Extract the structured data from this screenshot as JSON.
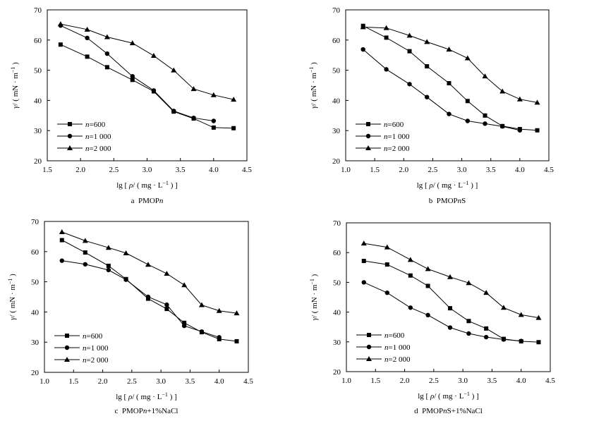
{
  "chart_data": [
    {
      "type": "line",
      "caption": "a PMOPn",
      "caption_parts": [
        "a  PMOP",
        "n",
        ""
      ],
      "xlabel_parts": [
        "lg [ ",
        "ρ",
        "/ ( mg · L",
        "−1",
        " ) ]"
      ],
      "ylabel_parts": [
        "γ",
        "/ ( mN · m",
        "−1",
        " )"
      ],
      "xlim": [
        1.5,
        4.5
      ],
      "ylim": [
        20,
        70
      ],
      "xticks": [
        "1.5",
        "2.0",
        "2.5",
        "3.0",
        "3.5",
        "4.0",
        "4.5"
      ],
      "yticks": [
        "20",
        "30",
        "40",
        "50",
        "60",
        "70"
      ],
      "legend_position": "lower-left",
      "series": [
        {
          "name": "n=600",
          "name_parts": [
            "n",
            "=600"
          ],
          "marker": "square",
          "x": [
            1.7,
            2.1,
            2.4,
            2.78,
            3.1,
            3.4,
            3.7,
            4.0,
            4.3
          ],
          "y": [
            58.5,
            54.5,
            51.0,
            46.8,
            43.0,
            36.3,
            34.0,
            31.0,
            30.8
          ]
        },
        {
          "name": "n=1000",
          "name_parts": [
            "n",
            "=1 000"
          ],
          "marker": "circle",
          "x": [
            1.7,
            2.1,
            2.4,
            2.78,
            3.1,
            3.4,
            3.7,
            4.0
          ],
          "y": [
            64.8,
            60.7,
            55.5,
            48.0,
            43.3,
            36.5,
            34.2,
            33.2
          ]
        },
        {
          "name": "n=2000",
          "name_parts": [
            "n",
            "=2 000"
          ],
          "marker": "triangle",
          "x": [
            1.7,
            2.1,
            2.4,
            2.78,
            3.1,
            3.4,
            3.7,
            4.0,
            4.3
          ],
          "y": [
            65.3,
            63.5,
            61.0,
            59.0,
            54.8,
            50.0,
            43.8,
            41.8,
            40.3
          ]
        }
      ]
    },
    {
      "type": "line",
      "caption": "b PMOPnS",
      "caption_parts": [
        "b  PMOP",
        "n",
        "S"
      ],
      "xlabel_parts": [
        "lg [ ",
        "ρ",
        "/ ( mg · L",
        "−1",
        " ) ]"
      ],
      "ylabel_parts": [
        "γ",
        "/ ( mN · m",
        "−1",
        " )"
      ],
      "xlim": [
        1.0,
        4.5
      ],
      "ylim": [
        20,
        70
      ],
      "xticks": [
        "1.0",
        "1.5",
        "2.0",
        "2.5",
        "3.0",
        "3.5",
        "4.0",
        "4.5"
      ],
      "yticks": [
        "20",
        "30",
        "40",
        "50",
        "60",
        "70"
      ],
      "legend_position": "lower-left",
      "series": [
        {
          "name": "n=600",
          "name_parts": [
            "n",
            "=600"
          ],
          "marker": "square",
          "x": [
            1.3,
            1.7,
            2.1,
            2.4,
            2.78,
            3.1,
            3.4,
            3.7,
            4.0,
            4.3
          ],
          "y": [
            64.7,
            60.8,
            56.3,
            51.3,
            45.7,
            39.8,
            35.0,
            31.5,
            30.5,
            30.1
          ]
        },
        {
          "name": "n=1000",
          "name_parts": [
            "n",
            "=1 000"
          ],
          "marker": "circle",
          "x": [
            1.3,
            1.7,
            2.1,
            2.4,
            2.78,
            3.1,
            3.4,
            3.7,
            4.0
          ],
          "y": [
            56.9,
            50.3,
            45.4,
            41.1,
            35.5,
            33.2,
            32.3,
            31.4,
            30.1
          ]
        },
        {
          "name": "n=2000",
          "name_parts": [
            "n",
            "=2 000"
          ],
          "marker": "triangle",
          "x": [
            1.3,
            1.7,
            2.1,
            2.4,
            2.78,
            3.1,
            3.4,
            3.7,
            4.0,
            4.3
          ],
          "y": [
            64.3,
            64.0,
            61.5,
            59.4,
            56.9,
            54.0,
            48.0,
            43.0,
            40.4,
            39.3
          ]
        }
      ]
    },
    {
      "type": "line",
      "caption": "c PMOPn+1%NaCl",
      "caption_parts": [
        "c  PMOP",
        "n",
        "+1%NaCl"
      ],
      "xlabel_parts": [
        "lg [ ",
        "ρ",
        "/ ( mg · L",
        "−1",
        " ) ]"
      ],
      "ylabel_parts": [
        "γ",
        "/ ( mN · m",
        "−1",
        " )"
      ],
      "xlim": [
        1.0,
        4.5
      ],
      "ylim": [
        20,
        70
      ],
      "xticks": [
        "1.0",
        "1.5",
        "2.0",
        "2.5",
        "3.0",
        "3.5",
        "4.0",
        "4.5"
      ],
      "yticks": [
        "20",
        "30",
        "40",
        "50",
        "60",
        "70"
      ],
      "legend_position": "lower-left",
      "series": [
        {
          "name": "n=600",
          "name_parts": [
            "n",
            "=600"
          ],
          "marker": "square",
          "x": [
            1.3,
            1.7,
            2.1,
            2.4,
            2.78,
            3.1,
            3.4,
            3.7,
            4.0,
            4.3
          ],
          "y": [
            63.8,
            59.7,
            55.3,
            50.9,
            44.4,
            41.0,
            36.4,
            33.3,
            31.0,
            30.3
          ]
        },
        {
          "name": "n=1000",
          "name_parts": [
            "n",
            "=1 000"
          ],
          "marker": "circle",
          "x": [
            1.3,
            1.7,
            2.1,
            2.4,
            2.78,
            3.1,
            3.4,
            3.7,
            4.0
          ],
          "y": [
            57.0,
            55.8,
            53.9,
            50.7,
            45.0,
            42.4,
            35.4,
            33.5,
            31.6
          ]
        },
        {
          "name": "n=2000",
          "name_parts": [
            "n",
            "=2 000"
          ],
          "marker": "triangle",
          "x": [
            1.3,
            1.7,
            2.1,
            2.4,
            2.78,
            3.1,
            3.4,
            3.7,
            4.0,
            4.3
          ],
          "y": [
            66.5,
            63.6,
            61.3,
            59.5,
            55.7,
            52.7,
            48.9,
            42.3,
            40.4,
            39.6
          ]
        }
      ]
    },
    {
      "type": "line",
      "caption": "d PMOPnS+1%NaCl",
      "caption_parts": [
        "d  PMOP",
        "n",
        "S+1%NaCl"
      ],
      "xlabel_parts": [
        "lg [ ",
        "ρ",
        "/ ( mg · L",
        "−1",
        " ) ]"
      ],
      "ylabel_parts": [
        "γ",
        "/ ( mN · m",
        "−1",
        " )"
      ],
      "xlim": [
        1.0,
        4.5
      ],
      "ylim": [
        20,
        70
      ],
      "xticks": [
        "1.0",
        "1.5",
        "2.0",
        "2.5",
        "3.0",
        "3.5",
        "4.0",
        "4.5"
      ],
      "yticks": [
        "20",
        "30",
        "40",
        "50",
        "60",
        "70"
      ],
      "legend_position": "lower-left",
      "series": [
        {
          "name": "n=600",
          "name_parts": [
            "n",
            "=600"
          ],
          "marker": "square",
          "x": [
            1.3,
            1.7,
            2.1,
            2.4,
            2.78,
            3.1,
            3.4,
            3.7,
            4.0,
            4.3
          ],
          "y": [
            57.2,
            56.0,
            52.3,
            48.8,
            41.3,
            37.0,
            34.5,
            31.0,
            30.2,
            29.9
          ]
        },
        {
          "name": "n=1000",
          "name_parts": [
            "n",
            "=1 000"
          ],
          "marker": "circle",
          "x": [
            1.3,
            1.7,
            2.1,
            2.4,
            2.78,
            3.1,
            3.4,
            3.7,
            4.0
          ],
          "y": [
            50.0,
            46.5,
            41.5,
            39.0,
            34.8,
            32.8,
            31.6,
            30.8,
            30.3
          ]
        },
        {
          "name": "n=2000",
          "name_parts": [
            "n",
            "=2 000"
          ],
          "marker": "triangle",
          "x": [
            1.3,
            1.7,
            2.1,
            2.4,
            2.78,
            3.1,
            3.4,
            3.7,
            4.0,
            4.3
          ],
          "y": [
            63.1,
            61.8,
            57.6,
            54.5,
            51.8,
            49.8,
            46.5,
            41.5,
            39.1,
            38.1
          ]
        }
      ]
    }
  ]
}
